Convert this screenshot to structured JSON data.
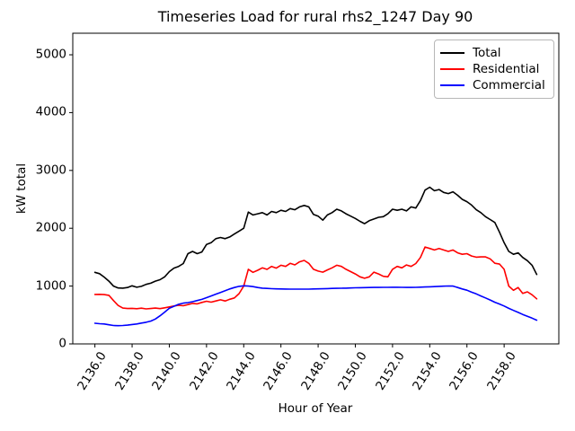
{
  "figure": {
    "title": "Timeseries Load for rural rhs2_1247  Day 90",
    "xlabel": "Hour of Year",
    "ylabel": "kW total"
  },
  "legend": {
    "entries": [
      {
        "label": "Total",
        "color": "#000000"
      },
      {
        "label": "Residential",
        "color": "#ff0000"
      },
      {
        "label": "Commercial",
        "color": "#0000ff"
      }
    ]
  },
  "chart_data": {
    "type": "line",
    "title": "Timeseries Load for rural rhs2_1247  Day 90",
    "xlabel": "Hour of Year",
    "ylabel": "kW total",
    "grid": false,
    "legend_position": "upper right",
    "xlim": [
      2134.81,
      2160.94
    ],
    "ylim": [
      0,
      5373
    ],
    "x_ticks": [
      2136,
      2138,
      2140,
      2142,
      2144,
      2146,
      2148,
      2150,
      2152,
      2154,
      2156,
      2158
    ],
    "x_tick_labels": [
      "2136.0",
      "2138.0",
      "2140.0",
      "2142.0",
      "2144.0",
      "2146.0",
      "2148.0",
      "2150.0",
      "2152.0",
      "2154.0",
      "2156.0",
      "2158.0"
    ],
    "y_ticks": [
      0,
      1000,
      2000,
      3000,
      4000,
      5000
    ],
    "y_tick_labels": [
      "0",
      "1000",
      "2000",
      "3000",
      "4000",
      "5000"
    ],
    "x_start": 2136.0,
    "x_step": 0.25,
    "n_points": 96,
    "series": [
      {
        "name": "Total",
        "color": "#000000",
        "values": [
          1237,
          1215,
          1155,
          1085,
          1000,
          968,
          965,
          975,
          1005,
          980,
          995,
          1030,
          1050,
          1085,
          1110,
          1160,
          1250,
          1310,
          1340,
          1390,
          1560,
          1600,
          1560,
          1590,
          1720,
          1750,
          1820,
          1840,
          1820,
          1850,
          1900,
          1950,
          2000,
          2280,
          2230,
          2250,
          2270,
          2230,
          2290,
          2270,
          2310,
          2290,
          2340,
          2320,
          2370,
          2395,
          2370,
          2240,
          2210,
          2140,
          2230,
          2270,
          2330,
          2300,
          2250,
          2210,
          2170,
          2120,
          2080,
          2130,
          2160,
          2190,
          2200,
          2250,
          2330,
          2310,
          2330,
          2300,
          2370,
          2350,
          2480,
          2660,
          2710,
          2650,
          2670,
          2620,
          2600,
          2630,
          2570,
          2500,
          2460,
          2400,
          2320,
          2270,
          2200,
          2150,
          2100,
          1930,
          1750,
          1600,
          1550,
          1575,
          1495,
          1440,
          1360,
          1200
        ]
      },
      {
        "name": "Residential",
        "color": "#ff0000",
        "values": [
          855,
          857,
          853,
          840,
          750,
          665,
          620,
          612,
          615,
          608,
          618,
          605,
          612,
          620,
          610,
          625,
          640,
          655,
          670,
          660,
          680,
          700,
          692,
          718,
          738,
          722,
          742,
          762,
          742,
          772,
          795,
          870,
          1000,
          1290,
          1238,
          1273,
          1315,
          1289,
          1340,
          1310,
          1360,
          1340,
          1393,
          1367,
          1419,
          1444,
          1393,
          1290,
          1260,
          1240,
          1280,
          1315,
          1360,
          1340,
          1290,
          1250,
          1210,
          1160,
          1135,
          1160,
          1240,
          1210,
          1170,
          1160,
          1290,
          1340,
          1315,
          1365,
          1340,
          1390,
          1495,
          1675,
          1650,
          1625,
          1650,
          1625,
          1600,
          1625,
          1575,
          1550,
          1560,
          1520,
          1500,
          1505,
          1505,
          1470,
          1395,
          1380,
          1290,
          1000,
          927,
          975,
          875,
          900,
          850,
          780
        ]
      },
      {
        "name": "Commercial",
        "color": "#0000ff",
        "values": [
          357,
          350,
          344,
          330,
          318,
          315,
          318,
          325,
          335,
          345,
          360,
          375,
          395,
          430,
          486,
          550,
          616,
          650,
          685,
          705,
          715,
          730,
          750,
          770,
          800,
          830,
          860,
          890,
          920,
          950,
          975,
          995,
          1005,
          1000,
          990,
          975,
          965,
          960,
          955,
          952,
          950,
          949,
          948,
          948,
          947,
          947,
          948,
          950,
          952,
          954,
          956,
          959,
          961,
          963,
          965,
          968,
          970,
          972,
          974,
          975,
          976,
          977,
          978,
          979,
          980,
          980,
          978,
          977,
          977,
          979,
          982,
          985,
          988,
          991,
          995,
          999,
          1002,
          1000,
          975,
          950,
          928,
          895,
          865,
          830,
          795,
          760,
          720,
          690,
          655,
          615,
          580,
          545,
          510,
          478,
          445,
          410
        ]
      }
    ]
  }
}
